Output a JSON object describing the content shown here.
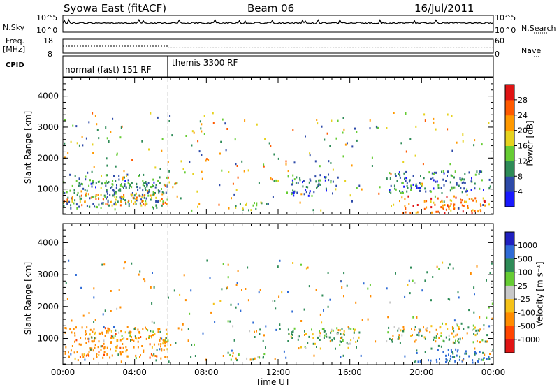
{
  "header": {
    "station": "Syowa East (fitACF)",
    "beam": "Beam 06",
    "date": "16/Jul/2011"
  },
  "status_panels": {
    "nsky_label": "N.Sky",
    "nsky_ticks": [
      "10^5",
      "10^0"
    ],
    "nsearch_label": "N.Search",
    "nsearch_ticks": [
      "10^5",
      "10^0"
    ],
    "freq_label_top": "Freq.",
    "freq_label_bottom": "[MHz]",
    "freq_ticks": [
      "18",
      "8"
    ],
    "nave_label": "Nave",
    "nave_ticks": [
      "60",
      "0"
    ],
    "cpid_label": "CPID",
    "modes": [
      "normal (fast) 151 RF",
      "themis 3300 RF"
    ],
    "mode_change_time_h": 5.85,
    "freq_mhz": {
      "before": 13,
      "after": 11.8
    },
    "nave": {
      "before": 14,
      "after": 6
    }
  },
  "x_axis": {
    "label": "Time UT",
    "ticks": [
      "00:00",
      "04:00",
      "08:00",
      "12:00",
      "16:00",
      "20:00",
      "00:00"
    ],
    "range_h": [
      0,
      24
    ]
  },
  "colors": {
    "power": [
      "#1919ff",
      "#2d4aa8",
      "#2e8b57",
      "#66cc33",
      "#e6d21e",
      "#ff9900",
      "#ff5a00",
      "#e01414"
    ],
    "velocity": [
      "#2020c0",
      "#2f6bd6",
      "#2e8b57",
      "#66cc33",
      "#c8c8c8",
      "#f5c218",
      "#ff8c00",
      "#ff4500",
      "#e01414"
    ],
    "axes": "#000000"
  },
  "chart_data": [
    {
      "type": "heatmap",
      "title": "Power",
      "ylabel": "Slant Range [km]",
      "ylim": [
        180,
        4600
      ],
      "yticks": [
        1000,
        2000,
        3000,
        4000
      ],
      "colorbar_label": "Power [dB]",
      "colorbar_ticks": [
        "4",
        "8",
        "12",
        "16",
        "20",
        "24",
        "28"
      ],
      "colorbar_range": [
        0,
        32
      ],
      "regions": [
        {
          "t": [
            0.0,
            5.8
          ],
          "r": [
            400,
            1500
          ],
          "v": 10,
          "desc": "dense near-range backscatter"
        },
        {
          "t": [
            1.4,
            5.8
          ],
          "r": [
            1000,
            1300
          ],
          "v": 8
        },
        {
          "t": [
            0.0,
            5.8
          ],
          "r": [
            500,
            900
          ],
          "v": 22
        },
        {
          "t": [
            9.0,
            11.5
          ],
          "r": [
            350,
            600
          ],
          "v": 14
        },
        {
          "t": [
            12.5,
            15.0
          ],
          "r": [
            800,
            1500
          ],
          "v": 8
        },
        {
          "t": [
            18.2,
            23.8
          ],
          "r": [
            250,
            800
          ],
          "v": 24
        },
        {
          "t": [
            18.0,
            23.8
          ],
          "r": [
            900,
            1600
          ],
          "v": 8
        }
      ]
    },
    {
      "type": "heatmap",
      "title": "Velocity",
      "ylabel": "Slant Range [km]",
      "ylim": [
        180,
        4600
      ],
      "yticks": [
        1000,
        2000,
        3000,
        4000
      ],
      "colorbar_label": "Velocity [m s⁻¹]",
      "colorbar_ticks": [
        "1000",
        "500",
        "100",
        "25",
        "-25",
        "-100",
        "-500",
        "-1000"
      ],
      "colorbar_range": [
        -1500,
        1500
      ],
      "regions": [
        {
          "t": [
            0.0,
            5.8
          ],
          "r": [
            400,
            1400
          ],
          "v": -300
        },
        {
          "t": [
            1.4,
            5.8
          ],
          "r": [
            950,
            1300
          ],
          "v": 0
        },
        {
          "t": [
            9.0,
            11.5
          ],
          "r": [
            350,
            600
          ],
          "v": 30
        },
        {
          "t": [
            12.5,
            16.5
          ],
          "r": [
            700,
            1400
          ],
          "v": 120
        },
        {
          "t": [
            18.0,
            23.8
          ],
          "r": [
            900,
            1500
          ],
          "v": 0
        },
        {
          "t": [
            19.5,
            23.8
          ],
          "r": [
            250,
            700
          ],
          "v": 600
        }
      ]
    }
  ]
}
